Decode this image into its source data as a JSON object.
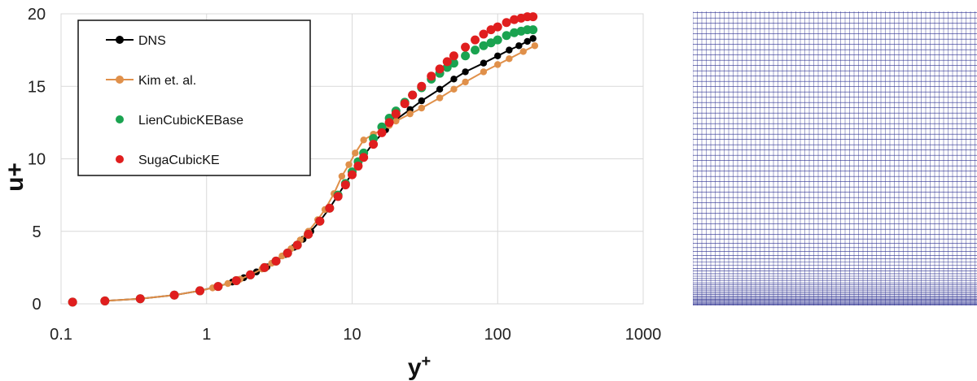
{
  "chart_data": {
    "type": "scatter",
    "x_scale": "log",
    "xlim": [
      0.1,
      1000
    ],
    "ylim": [
      0,
      20
    ],
    "x_ticks": [
      "0.1",
      "1",
      "10",
      "100",
      "1000"
    ],
    "y_ticks": [
      "0",
      "5",
      "10",
      "15",
      "20"
    ],
    "xlabel": "y+",
    "ylabel": "u+",
    "grid": true,
    "legend_position": "top-left",
    "series": [
      {
        "name": "DNS",
        "color": "#000000",
        "style": "line-markers",
        "x": [
          0.2,
          0.35,
          0.6,
          0.9,
          1.2,
          1.5,
          1.8,
          2.2,
          2.6,
          3.0,
          3.5,
          4.0,
          4.6,
          5.2,
          6.0,
          7.0,
          8.0,
          9.0,
          10,
          12,
          14,
          17,
          20,
          25,
          30,
          40,
          50,
          60,
          80,
          100,
          120,
          140,
          160,
          175
        ],
        "y": [
          0.2,
          0.35,
          0.6,
          0.9,
          1.2,
          1.5,
          1.8,
          2.2,
          2.55,
          2.95,
          3.4,
          3.9,
          4.45,
          5.0,
          5.7,
          6.6,
          7.5,
          8.3,
          9.0,
          10.2,
          11.1,
          12.0,
          12.7,
          13.4,
          14.0,
          14.8,
          15.5,
          16.0,
          16.6,
          17.1,
          17.5,
          17.8,
          18.1,
          18.3
        ]
      },
      {
        "name": "Kim et. al.",
        "color": "#e0904a",
        "style": "line-markers",
        "x": [
          0.2,
          0.35,
          0.6,
          0.9,
          1.1,
          1.4,
          1.7,
          2.0,
          2.4,
          2.8,
          3.3,
          3.8,
          4.4,
          5.0,
          5.8,
          6.5,
          7.5,
          8.5,
          9.5,
          10.5,
          12,
          14,
          16,
          18,
          20,
          25,
          30,
          40,
          50,
          60,
          80,
          100,
          120,
          150,
          180
        ],
        "y": [
          0.2,
          0.35,
          0.6,
          0.9,
          1.1,
          1.4,
          1.7,
          2.0,
          2.4,
          2.8,
          3.3,
          3.8,
          4.4,
          5.0,
          5.8,
          6.5,
          7.6,
          8.8,
          9.6,
          10.4,
          11.3,
          11.7,
          12.0,
          12.3,
          12.6,
          13.1,
          13.5,
          14.2,
          14.8,
          15.3,
          16.0,
          16.5,
          16.9,
          17.4,
          17.8
        ]
      },
      {
        "name": "LienCubicKEBase",
        "color": "#1aa350",
        "style": "markers",
        "x": [
          0.12,
          0.2,
          0.35,
          0.6,
          0.9,
          1.2,
          1.6,
          2.0,
          2.5,
          3.0,
          3.6,
          4.2,
          5.0,
          6.0,
          7.0,
          8.0,
          9.0,
          10,
          11,
          12,
          14,
          16,
          18,
          20,
          23,
          26,
          30,
          35,
          40,
          45,
          50,
          60,
          70,
          80,
          90,
          100,
          115,
          130,
          145,
          160,
          175
        ],
        "y": [
          0.12,
          0.2,
          0.35,
          0.6,
          0.9,
          1.2,
          1.6,
          2.0,
          2.5,
          2.95,
          3.5,
          4.05,
          4.8,
          5.7,
          6.6,
          7.5,
          8.3,
          9.1,
          9.8,
          10.4,
          11.4,
          12.2,
          12.8,
          13.3,
          13.9,
          14.4,
          14.9,
          15.5,
          15.9,
          16.3,
          16.6,
          17.1,
          17.5,
          17.8,
          18.0,
          18.2,
          18.5,
          18.7,
          18.8,
          18.9,
          18.9
        ]
      },
      {
        "name": "SugaCubicKE",
        "color": "#e01e1e",
        "style": "markers",
        "x": [
          0.12,
          0.2,
          0.35,
          0.6,
          0.9,
          1.2,
          1.6,
          2.0,
          2.5,
          3.0,
          3.6,
          4.2,
          5.0,
          6.0,
          7.0,
          8.0,
          9.0,
          10,
          11,
          12,
          14,
          16,
          18,
          20,
          23,
          26,
          30,
          35,
          40,
          45,
          50,
          60,
          70,
          80,
          90,
          100,
          115,
          130,
          145,
          160,
          175
        ],
        "y": [
          0.12,
          0.2,
          0.35,
          0.6,
          0.9,
          1.2,
          1.6,
          2.0,
          2.5,
          2.95,
          3.5,
          4.05,
          4.8,
          5.7,
          6.6,
          7.4,
          8.2,
          8.9,
          9.5,
          10.1,
          11.0,
          11.8,
          12.5,
          13.1,
          13.8,
          14.4,
          15.0,
          15.7,
          16.2,
          16.7,
          17.1,
          17.7,
          18.2,
          18.6,
          18.9,
          19.1,
          19.4,
          19.6,
          19.7,
          19.8,
          19.8
        ]
      }
    ]
  },
  "mesh_panel": {
    "line_color": "#2a2f8f",
    "background": "#ffffff"
  }
}
